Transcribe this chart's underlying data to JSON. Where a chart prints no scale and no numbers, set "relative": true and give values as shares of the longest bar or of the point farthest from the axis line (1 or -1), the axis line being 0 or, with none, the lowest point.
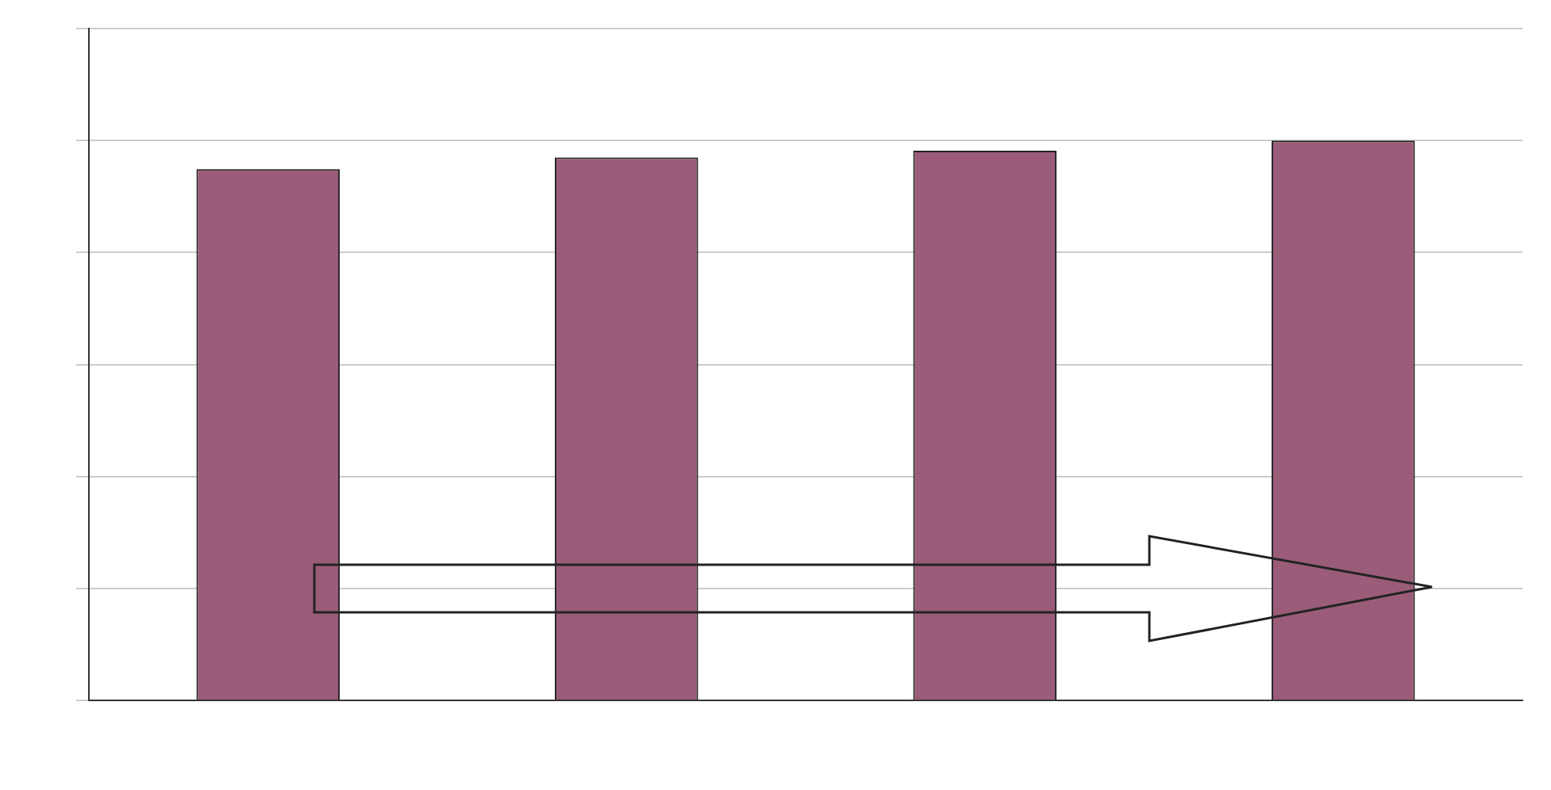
{
  "chart_data": {
    "type": "bar",
    "categories": [
      null,
      null,
      null,
      null
    ],
    "relative": true,
    "values": [
      0.949,
      0.97,
      0.982,
      1
    ],
    "color": "#9a5c78",
    "grid": "y"
  }
}
